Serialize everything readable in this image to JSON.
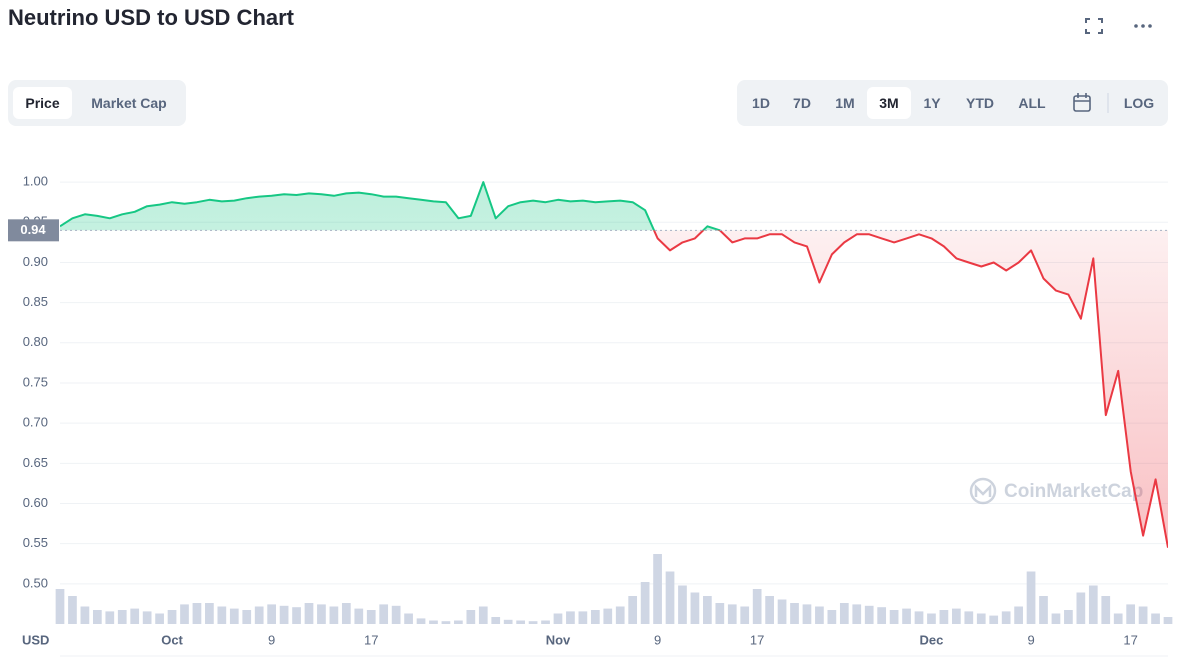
{
  "tabs": [
    "Price",
    "Market Cap"
  ],
  "ranges": [
    "1D",
    "7D",
    "1M",
    "3M",
    "1Y",
    "YTD",
    "ALL",
    "LOG"
  ],
  "chart_data": {
    "type": "line",
    "title": "Neutrino USD to USD Chart",
    "y_unit": "USD",
    "watermark": "CoinMarketCap",
    "price_label": 0.94,
    "x": [
      0,
      1,
      2,
      3,
      4,
      5,
      6,
      7,
      8,
      9,
      10,
      11,
      12,
      13,
      14,
      15,
      16,
      17,
      18,
      19,
      20,
      21,
      22,
      23,
      24,
      25,
      26,
      27,
      28,
      29,
      30,
      31,
      32,
      33,
      34,
      35,
      36,
      37,
      38,
      39,
      40,
      41,
      42,
      43,
      44,
      45,
      46,
      47,
      48,
      49,
      50,
      51,
      52,
      53,
      54,
      55,
      56,
      57,
      58,
      59,
      60,
      61,
      62,
      63,
      64,
      65,
      66,
      67,
      68,
      69,
      70,
      71,
      72,
      73,
      74,
      75,
      76,
      77,
      78,
      79,
      80,
      81,
      82,
      83,
      84,
      85,
      86,
      87,
      88,
      89
    ],
    "series": [
      {
        "color": "#16c784",
        "color_below": "#ea3943",
        "values": [
          0.945,
          0.955,
          0.96,
          0.958,
          0.955,
          0.96,
          0.963,
          0.97,
          0.972,
          0.975,
          0.973,
          0.975,
          0.978,
          0.976,
          0.977,
          0.98,
          0.982,
          0.983,
          0.985,
          0.984,
          0.986,
          0.985,
          0.983,
          0.986,
          0.987,
          0.985,
          0.982,
          0.982,
          0.98,
          0.978,
          0.976,
          0.975,
          0.955,
          0.958,
          1.0,
          0.955,
          0.97,
          0.975,
          0.977,
          0.975,
          0.978,
          0.976,
          0.977,
          0.975,
          0.976,
          0.977,
          0.975,
          0.965,
          0.93,
          0.915,
          0.925,
          0.93,
          0.945,
          0.94,
          0.925,
          0.93,
          0.93,
          0.935,
          0.935,
          0.925,
          0.92,
          0.875,
          0.91,
          0.925,
          0.935,
          0.935,
          0.93,
          0.925,
          0.93,
          0.935,
          0.93,
          0.92,
          0.905,
          0.9,
          0.895,
          0.9,
          0.89,
          0.9,
          0.915,
          0.88,
          0.865,
          0.86,
          0.83,
          0.905,
          0.71,
          0.765,
          0.64,
          0.56,
          0.63,
          0.545
        ]
      },
      {
        "type": "bar",
        "axis": "y2",
        "color": "#cfd6e4",
        "values": [
          50,
          40,
          25,
          20,
          18,
          20,
          22,
          18,
          15,
          20,
          28,
          30,
          30,
          25,
          22,
          20,
          25,
          28,
          26,
          24,
          30,
          28,
          25,
          30,
          22,
          20,
          28,
          26,
          15,
          8,
          5,
          4,
          5,
          20,
          25,
          10,
          6,
          5,
          4,
          5,
          15,
          18,
          18,
          20,
          22,
          25,
          40,
          60,
          100,
          75,
          55,
          45,
          40,
          30,
          28,
          25,
          50,
          40,
          35,
          30,
          28,
          25,
          20,
          30,
          28,
          26,
          24,
          20,
          22,
          18,
          15,
          20,
          22,
          18,
          15,
          12,
          18,
          25,
          75,
          40,
          15,
          20,
          45,
          55,
          40,
          15,
          28,
          25,
          15,
          10
        ]
      }
    ],
    "xlim": [
      0,
      89
    ],
    "xticks": [
      {
        "value": 9,
        "label": "Oct"
      },
      {
        "value": 17,
        "label": "9"
      },
      {
        "value": 25,
        "label": "17"
      },
      {
        "value": 40,
        "label": "Nov"
      },
      {
        "value": 48,
        "label": "9"
      },
      {
        "value": 56,
        "label": "17"
      },
      {
        "value": 70,
        "label": "Dec"
      },
      {
        "value": 78,
        "label": "9"
      },
      {
        "value": 86,
        "label": "17"
      }
    ],
    "ylim": [
      0.45,
      1.035
    ],
    "yticks": [
      {
        "value": 0.5,
        "label": "0.50"
      },
      {
        "value": 0.55,
        "label": "0.55"
      },
      {
        "value": 0.6,
        "label": "0.60"
      },
      {
        "value": 0.65,
        "label": "0.65"
      },
      {
        "value": 0.7,
        "label": "0.70"
      },
      {
        "value": 0.75,
        "label": "0.75"
      },
      {
        "value": 0.8,
        "label": "0.80"
      },
      {
        "value": 0.85,
        "label": "0.85"
      },
      {
        "value": 0.9,
        "label": "0.90"
      },
      {
        "value": 0.95,
        "label": "0.95"
      },
      {
        "value": 1.0,
        "label": "1.00"
      }
    ],
    "y2lim": [
      0,
      100
    ],
    "grid": true
  }
}
